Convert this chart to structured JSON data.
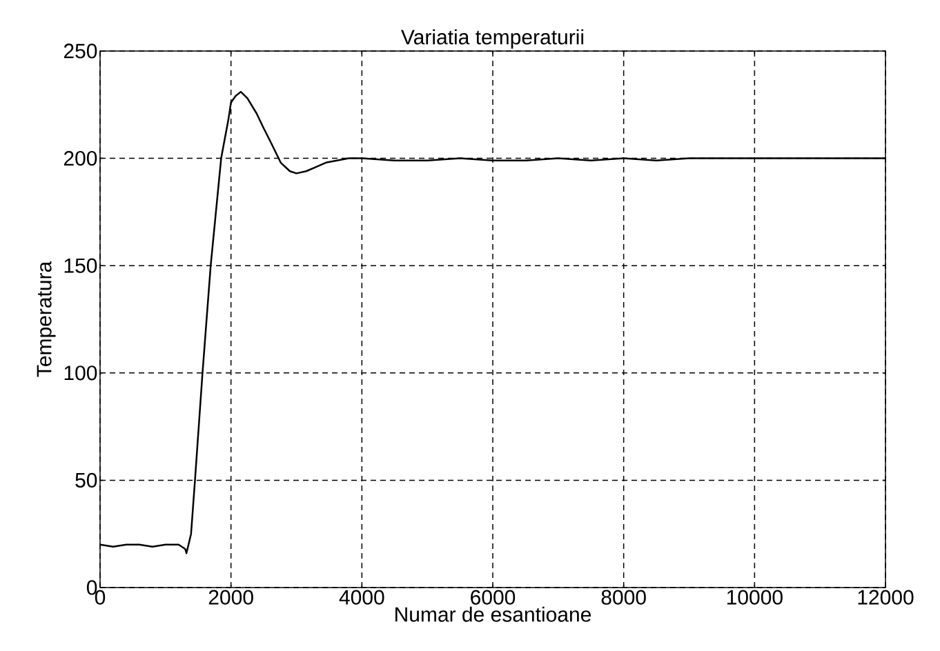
{
  "chart_data": {
    "type": "line",
    "title": "Variatia temperaturii",
    "xlabel": "Numar de esantioane",
    "ylabel": "Temperatura",
    "xlim": [
      0,
      12000
    ],
    "ylim": [
      0,
      250
    ],
    "xticks": [
      0,
      2000,
      4000,
      6000,
      8000,
      10000,
      12000
    ],
    "yticks": [
      0,
      50,
      100,
      150,
      200,
      250
    ],
    "grid": true,
    "line_style": "solid",
    "marker": "none",
    "series": [
      {
        "color": "#000000",
        "x": [
          0,
          200,
          400,
          600,
          800,
          1000,
          1200,
          1300,
          1320,
          1390,
          1450,
          1565,
          1690,
          1850,
          1960,
          2000,
          2070,
          2150,
          2250,
          2390,
          2500,
          2600,
          2760,
          2900,
          3000,
          3150,
          3300,
          3450,
          3620,
          3800,
          4000,
          4500,
          5000,
          5500,
          6000,
          6500,
          7000,
          7500,
          8000,
          8500,
          9000,
          9500,
          10000,
          10500,
          11000,
          11500,
          12000
        ],
        "values": [
          20,
          19,
          20,
          20,
          19,
          20,
          20,
          18,
          16,
          25,
          50,
          100,
          150,
          200,
          218,
          226,
          229,
          231,
          228,
          221,
          214,
          208,
          198,
          194,
          193,
          194,
          196,
          198,
          199,
          200,
          200,
          199,
          199,
          200,
          199,
          199,
          200,
          199,
          200,
          199,
          200,
          200,
          200,
          200,
          200,
          200,
          200
        ]
      }
    ]
  }
}
